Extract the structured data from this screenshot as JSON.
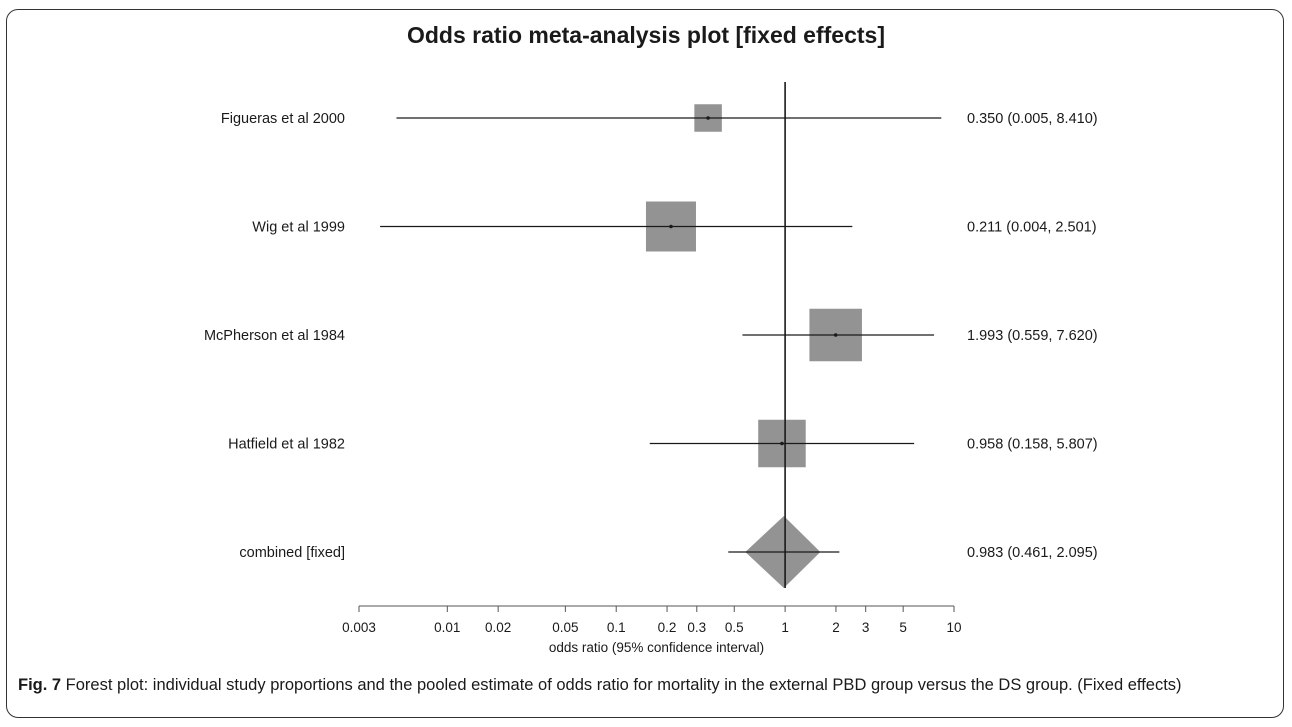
{
  "title": "Odds ratio meta-analysis plot [fixed effects]",
  "caption": {
    "label": "Fig. 7",
    "text": " Forest plot: individual study proportions and the pooled estimate of odds ratio for mortality in the external PBD group versus the DS group. (Fixed effects)"
  },
  "chart_data": {
    "type": "forest",
    "title": "Odds ratio meta-analysis plot [fixed effects]",
    "xlabel": "odds ratio (95% confidence interval)",
    "xscale": "log",
    "xlim": [
      0.003,
      10
    ],
    "x_ticks": [
      0.003,
      0.01,
      0.02,
      0.05,
      0.1,
      0.2,
      0.3,
      0.5,
      1,
      2,
      3,
      5,
      10
    ],
    "x_tick_labels": [
      "0.003",
      "0.01",
      "0.02",
      "0.05",
      "0.1",
      "0.2",
      "0.3",
      "0.5",
      "1",
      "2",
      "3",
      "5",
      "10"
    ],
    "reference_line": 1,
    "studies": [
      {
        "name": "Figueras et al 2000",
        "or": 0.35,
        "lo": 0.005,
        "hi": 8.41,
        "label": "0.350 (0.005, 8.410)",
        "weight": 0.55
      },
      {
        "name": "Wig et al 1999",
        "or": 0.211,
        "lo": 0.004,
        "hi": 2.501,
        "label": "0.211 (0.004, 2.501)",
        "weight": 1.0
      },
      {
        "name": "McPherson et al 1984",
        "or": 1.993,
        "lo": 0.559,
        "hi": 7.62,
        "label": "1.993 (0.559, 7.620)",
        "weight": 1.05
      },
      {
        "name": "Hatfield et al 1982",
        "or": 0.958,
        "lo": 0.158,
        "hi": 5.807,
        "label": "0.958 (0.158, 5.807)",
        "weight": 0.95
      }
    ],
    "combined": {
      "name": "combined [fixed]",
      "or": 0.983,
      "lo": 0.461,
      "hi": 2.095,
      "label": "0.983 (0.461, 2.095)"
    },
    "colors": {
      "box": "#939393",
      "line": "#1a1a1a"
    }
  }
}
